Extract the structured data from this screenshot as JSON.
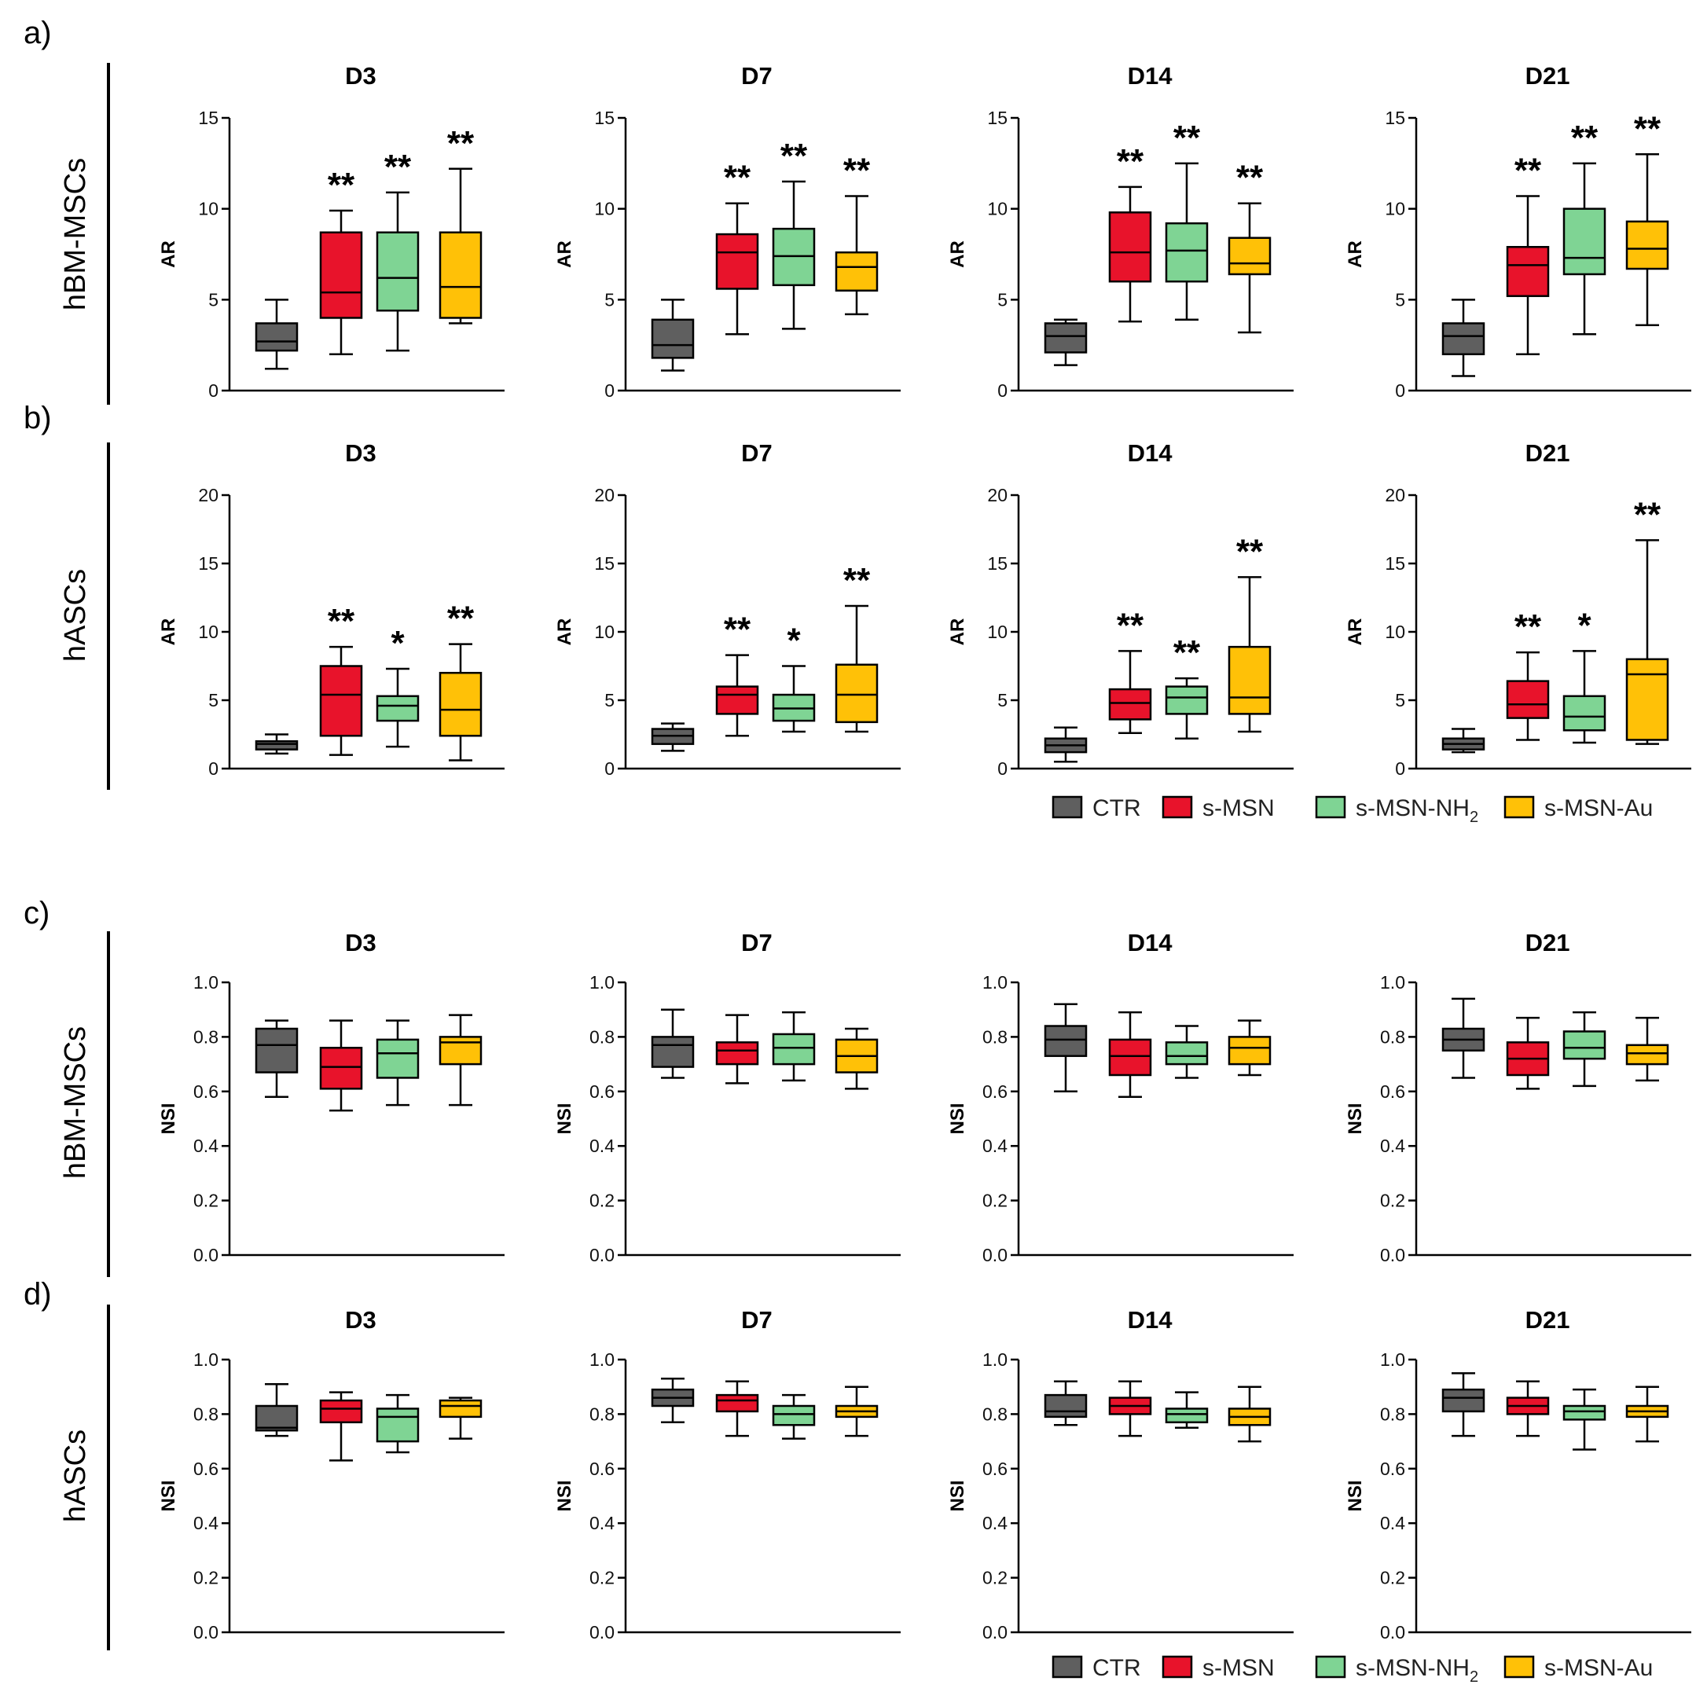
{
  "colors": {
    "CTR": "#5f5f5f",
    "s-MSN": "#e8132b",
    "s-MSN-NH2": "#7fd494",
    "s-MSN-Au": "#ffc107",
    "stroke": "#000000"
  },
  "rows": [
    {
      "letter": "a)",
      "cell_label": "hBM-MSCs"
    },
    {
      "letter": "b)",
      "cell_label": "hASCs"
    },
    {
      "letter": "c)",
      "cell_label": "hBM-MSCs"
    },
    {
      "letter": "d)",
      "cell_label": "hASCs"
    }
  ],
  "legends": [
    {
      "items": [
        {
          "group": "CTR",
          "label": "CTR",
          "sub": ""
        },
        {
          "group": "s-MSN",
          "label": "s-MSN",
          "sub": ""
        },
        {
          "group": "s-MSN-NH2",
          "label": "s-MSN-NH",
          "sub": "2"
        },
        {
          "group": "s-MSN-Au",
          "label": "s-MSN-Au",
          "sub": ""
        }
      ]
    },
    {
      "items": [
        {
          "group": "CTR",
          "label": "CTR",
          "sub": ""
        },
        {
          "group": "s-MSN",
          "label": "s-MSN",
          "sub": ""
        },
        {
          "group": "s-MSN-NH2",
          "label": "s-MSN-NH",
          "sub": "2"
        },
        {
          "group": "s-MSN-Au",
          "label": "s-MSN-Au",
          "sub": ""
        }
      ]
    }
  ],
  "chart_data": [
    {
      "type": "box",
      "panel": "a",
      "title": "D3",
      "ylabel": "AR",
      "ylim": [
        0,
        15
      ],
      "yticks": [
        "0",
        "5",
        "10",
        "15"
      ],
      "groups": [
        "CTR",
        "s-MSN",
        "s-MSN-NH2",
        "s-MSN-Au"
      ],
      "boxes": [
        [
          1.2,
          2.2,
          2.7,
          3.7,
          5.0
        ],
        [
          2.0,
          4.0,
          5.4,
          8.7,
          9.9
        ],
        [
          2.2,
          4.4,
          6.2,
          8.7,
          10.9
        ],
        [
          3.7,
          4.0,
          5.7,
          8.7,
          12.2
        ]
      ],
      "significance": [
        "",
        "**",
        "**",
        "**"
      ]
    },
    {
      "type": "box",
      "panel": "a",
      "title": "D7",
      "ylabel": "AR",
      "ylim": [
        0,
        15
      ],
      "yticks": [
        "0",
        "5",
        "10",
        "15"
      ],
      "groups": [
        "CTR",
        "s-MSN",
        "s-MSN-NH2",
        "s-MSN-Au"
      ],
      "boxes": [
        [
          1.1,
          1.8,
          2.5,
          3.9,
          5.0
        ],
        [
          3.1,
          5.6,
          7.6,
          8.6,
          10.3
        ],
        [
          3.4,
          5.8,
          7.4,
          8.9,
          11.5
        ],
        [
          4.2,
          5.5,
          6.8,
          7.6,
          10.7
        ]
      ],
      "significance": [
        "",
        "**",
        "**",
        "**"
      ]
    },
    {
      "type": "box",
      "panel": "a",
      "title": "D14",
      "ylabel": "AR",
      "ylim": [
        0,
        15
      ],
      "yticks": [
        "0",
        "5",
        "10",
        "15"
      ],
      "groups": [
        "CTR",
        "s-MSN",
        "s-MSN-NH2",
        "s-MSN-Au"
      ],
      "boxes": [
        [
          1.4,
          2.1,
          3.0,
          3.7,
          3.9
        ],
        [
          3.8,
          6.0,
          7.6,
          9.8,
          11.2
        ],
        [
          3.9,
          6.0,
          7.7,
          9.2,
          12.5
        ],
        [
          3.2,
          6.4,
          7.0,
          8.4,
          10.3
        ]
      ],
      "significance": [
        "",
        "**",
        "**",
        "**"
      ]
    },
    {
      "type": "box",
      "panel": "a",
      "title": "D21",
      "ylabel": "AR",
      "ylim": [
        0,
        15
      ],
      "yticks": [
        "0",
        "5",
        "10",
        "15"
      ],
      "groups": [
        "CTR",
        "s-MSN",
        "s-MSN-NH2",
        "s-MSN-Au"
      ],
      "boxes": [
        [
          0.8,
          2.0,
          3.0,
          3.7,
          5.0
        ],
        [
          2.0,
          5.2,
          6.9,
          7.9,
          10.7
        ],
        [
          3.1,
          6.4,
          7.3,
          10.0,
          12.5
        ],
        [
          3.6,
          6.7,
          7.8,
          9.3,
          13.0
        ]
      ],
      "significance": [
        "",
        "**",
        "**",
        "**"
      ]
    },
    {
      "type": "box",
      "panel": "b",
      "title": "D3",
      "ylabel": "AR",
      "ylim": [
        0,
        20
      ],
      "yticks": [
        "0",
        "5",
        "10",
        "15",
        "20"
      ],
      "groups": [
        "CTR",
        "s-MSN",
        "s-MSN-NH2",
        "s-MSN-Au"
      ],
      "boxes": [
        [
          1.1,
          1.4,
          1.8,
          2.0,
          2.5
        ],
        [
          1.0,
          2.4,
          5.4,
          7.5,
          8.9
        ],
        [
          1.6,
          3.5,
          4.6,
          5.3,
          7.3
        ],
        [
          0.6,
          2.4,
          4.3,
          7.0,
          9.1
        ]
      ],
      "significance": [
        "",
        "**",
        "*",
        "**"
      ]
    },
    {
      "type": "box",
      "panel": "b",
      "title": "D7",
      "ylabel": "AR",
      "ylim": [
        0,
        20
      ],
      "yticks": [
        "0",
        "5",
        "10",
        "15",
        "20"
      ],
      "groups": [
        "CTR",
        "s-MSN",
        "s-MSN-NH2",
        "s-MSN-Au"
      ],
      "boxes": [
        [
          1.3,
          1.8,
          2.4,
          2.9,
          3.3
        ],
        [
          2.4,
          4.0,
          5.4,
          6.0,
          8.3
        ],
        [
          2.7,
          3.5,
          4.4,
          5.4,
          7.5
        ],
        [
          2.7,
          3.4,
          5.4,
          7.6,
          11.9
        ]
      ],
      "significance": [
        "",
        "**",
        "*",
        "**"
      ]
    },
    {
      "type": "box",
      "panel": "b",
      "title": "D14",
      "ylabel": "AR",
      "ylim": [
        0,
        20
      ],
      "yticks": [
        "0",
        "5",
        "10",
        "15",
        "20"
      ],
      "groups": [
        "CTR",
        "s-MSN",
        "s-MSN-NH2",
        "s-MSN-Au"
      ],
      "boxes": [
        [
          0.5,
          1.2,
          1.7,
          2.2,
          3.0
        ],
        [
          2.6,
          3.6,
          4.8,
          5.8,
          8.6
        ],
        [
          2.2,
          4.0,
          5.2,
          6.0,
          6.6
        ],
        [
          2.7,
          4.0,
          5.2,
          8.9,
          14.0
        ]
      ],
      "significance": [
        "",
        "**",
        "**",
        "**"
      ]
    },
    {
      "type": "box",
      "panel": "b",
      "title": "D21",
      "ylabel": "AR",
      "ylim": [
        0,
        20
      ],
      "yticks": [
        "0",
        "5",
        "10",
        "15",
        "20"
      ],
      "groups": [
        "CTR",
        "s-MSN",
        "s-MSN-NH2",
        "s-MSN-Au"
      ],
      "boxes": [
        [
          1.2,
          1.4,
          1.8,
          2.2,
          2.9
        ],
        [
          2.1,
          3.7,
          4.7,
          6.4,
          8.5
        ],
        [
          1.9,
          2.8,
          3.8,
          5.3,
          8.6
        ],
        [
          1.8,
          2.1,
          6.9,
          8.0,
          16.7
        ]
      ],
      "significance": [
        "",
        "**",
        "*",
        "**"
      ]
    },
    {
      "type": "box",
      "panel": "c",
      "title": "D3",
      "ylabel": "NSI",
      "ylim": [
        0,
        1
      ],
      "yticks": [
        "0.0",
        "0.2",
        "0.4",
        "0.6",
        "0.8",
        "1.0"
      ],
      "groups": [
        "CTR",
        "s-MSN",
        "s-MSN-NH2",
        "s-MSN-Au"
      ],
      "boxes": [
        [
          0.58,
          0.67,
          0.77,
          0.83,
          0.86
        ],
        [
          0.53,
          0.61,
          0.69,
          0.76,
          0.86
        ],
        [
          0.55,
          0.65,
          0.74,
          0.79,
          0.86
        ],
        [
          0.55,
          0.7,
          0.78,
          0.8,
          0.88
        ]
      ],
      "significance": [
        "",
        "",
        "",
        ""
      ]
    },
    {
      "type": "box",
      "panel": "c",
      "title": "D7",
      "ylabel": "NSI",
      "ylim": [
        0,
        1
      ],
      "yticks": [
        "0.0",
        "0.2",
        "0.4",
        "0.6",
        "0.8",
        "1.0"
      ],
      "groups": [
        "CTR",
        "s-MSN",
        "s-MSN-NH2",
        "s-MSN-Au"
      ],
      "boxes": [
        [
          0.65,
          0.69,
          0.77,
          0.8,
          0.9
        ],
        [
          0.63,
          0.7,
          0.75,
          0.78,
          0.88
        ],
        [
          0.64,
          0.7,
          0.76,
          0.81,
          0.89
        ],
        [
          0.61,
          0.67,
          0.73,
          0.79,
          0.83
        ]
      ],
      "significance": [
        "",
        "",
        "",
        ""
      ]
    },
    {
      "type": "box",
      "panel": "c",
      "title": "D14",
      "ylabel": "NSI",
      "ylim": [
        0,
        1
      ],
      "yticks": [
        "0.0",
        "0.2",
        "0.4",
        "0.6",
        "0.8",
        "1.0"
      ],
      "groups": [
        "CTR",
        "s-MSN",
        "s-MSN-NH2",
        "s-MSN-Au"
      ],
      "boxes": [
        [
          0.6,
          0.73,
          0.79,
          0.84,
          0.92
        ],
        [
          0.58,
          0.66,
          0.73,
          0.79,
          0.89
        ],
        [
          0.65,
          0.7,
          0.73,
          0.78,
          0.84
        ],
        [
          0.66,
          0.7,
          0.76,
          0.8,
          0.86
        ]
      ],
      "significance": [
        "",
        "",
        "",
        ""
      ]
    },
    {
      "type": "box",
      "panel": "c",
      "title": "D21",
      "ylabel": "NSI",
      "ylim": [
        0,
        1
      ],
      "yticks": [
        "0.0",
        "0.2",
        "0.4",
        "0.6",
        "0.8",
        "1.0"
      ],
      "groups": [
        "CTR",
        "s-MSN",
        "s-MSN-NH2",
        "s-MSN-Au"
      ],
      "boxes": [
        [
          0.65,
          0.75,
          0.79,
          0.83,
          0.94
        ],
        [
          0.61,
          0.66,
          0.72,
          0.78,
          0.87
        ],
        [
          0.62,
          0.72,
          0.76,
          0.82,
          0.89
        ],
        [
          0.64,
          0.7,
          0.74,
          0.77,
          0.87
        ]
      ],
      "significance": [
        "",
        "",
        "",
        ""
      ]
    },
    {
      "type": "box",
      "panel": "d",
      "title": "D3",
      "ylabel": "NSI",
      "ylim": [
        0,
        1
      ],
      "yticks": [
        "0.0",
        "0.2",
        "0.4",
        "0.6",
        "0.8",
        "1.0"
      ],
      "groups": [
        "CTR",
        "s-MSN",
        "s-MSN-NH2",
        "s-MSN-Au"
      ],
      "boxes": [
        [
          0.72,
          0.74,
          0.75,
          0.83,
          0.91
        ],
        [
          0.63,
          0.77,
          0.82,
          0.85,
          0.88
        ],
        [
          0.66,
          0.7,
          0.79,
          0.82,
          0.87
        ],
        [
          0.71,
          0.79,
          0.83,
          0.85,
          0.86
        ]
      ],
      "significance": [
        "",
        "",
        "",
        ""
      ]
    },
    {
      "type": "box",
      "panel": "d",
      "title": "D7",
      "ylabel": "NSI",
      "ylim": [
        0,
        1
      ],
      "yticks": [
        "0.0",
        "0.2",
        "0.4",
        "0.6",
        "0.8",
        "1.0"
      ],
      "groups": [
        "CTR",
        "s-MSN",
        "s-MSN-NH2",
        "s-MSN-Au"
      ],
      "boxes": [
        [
          0.77,
          0.83,
          0.86,
          0.89,
          0.93
        ],
        [
          0.72,
          0.81,
          0.85,
          0.87,
          0.92
        ],
        [
          0.71,
          0.76,
          0.8,
          0.83,
          0.87
        ],
        [
          0.72,
          0.79,
          0.81,
          0.83,
          0.9
        ]
      ],
      "significance": [
        "",
        "",
        "",
        ""
      ]
    },
    {
      "type": "box",
      "panel": "d",
      "title": "D14",
      "ylabel": "NSI",
      "ylim": [
        0,
        1
      ],
      "yticks": [
        "0.0",
        "0.2",
        "0.4",
        "0.6",
        "0.8",
        "1.0"
      ],
      "groups": [
        "CTR",
        "s-MSN",
        "s-MSN-NH2",
        "s-MSN-Au"
      ],
      "boxes": [
        [
          0.76,
          0.79,
          0.81,
          0.87,
          0.92
        ],
        [
          0.72,
          0.8,
          0.83,
          0.86,
          0.92
        ],
        [
          0.75,
          0.77,
          0.8,
          0.82,
          0.88
        ],
        [
          0.7,
          0.76,
          0.79,
          0.82,
          0.9
        ]
      ],
      "significance": [
        "",
        "",
        "",
        ""
      ]
    },
    {
      "type": "box",
      "panel": "d",
      "title": "D21",
      "ylabel": "NSI",
      "ylim": [
        0,
        1
      ],
      "yticks": [
        "0.0",
        "0.2",
        "0.4",
        "0.6",
        "0.8",
        "1.0"
      ],
      "groups": [
        "CTR",
        "s-MSN",
        "s-MSN-NH2",
        "s-MSN-Au"
      ],
      "boxes": [
        [
          0.72,
          0.81,
          0.86,
          0.89,
          0.95
        ],
        [
          0.72,
          0.8,
          0.83,
          0.86,
          0.92
        ],
        [
          0.67,
          0.78,
          0.81,
          0.83,
          0.89
        ],
        [
          0.7,
          0.79,
          0.81,
          0.83,
          0.9
        ]
      ],
      "significance": [
        "",
        "",
        "",
        ""
      ]
    }
  ]
}
